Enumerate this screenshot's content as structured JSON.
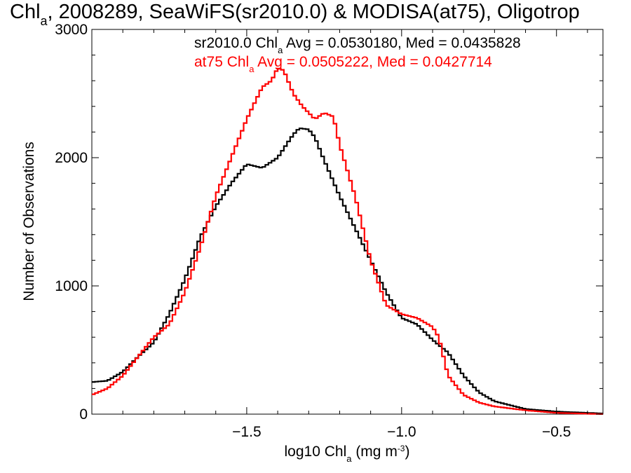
{
  "chart_data": {
    "type": "line",
    "title": {
      "base": "Chl",
      "sub": "a",
      "rest": ", 2008289, SeaWiFS(sr2010.0) & MODISA(at75), Oligotrop"
    },
    "xlabel": {
      "base": "log10 Chl",
      "sub": "a",
      "rest": " (mg m",
      "sup": "-3",
      "close": ")"
    },
    "ylabel": "Number of Observations",
    "xlim": [
      -2.0,
      -0.35
    ],
    "ylim": [
      0,
      3000
    ],
    "xticks": [
      -1.5,
      -1.0,
      -0.5
    ],
    "xtick_labels": [
      "−1.5",
      "−1.0",
      "−0.5"
    ],
    "yticks": [
      0,
      1000,
      2000,
      3000
    ],
    "ytick_labels": [
      "0",
      "1000",
      "2000",
      "3000"
    ],
    "grid": false,
    "legend_position": "top-right",
    "annotations": [
      {
        "color": "#000000",
        "base": "sr2010.0 Chl",
        "sub": "a",
        "rest": " Avg = 0.0530180, Med = 0.0435828"
      },
      {
        "color": "#ff0000",
        "base": "at75 Chl",
        "sub": "a",
        "rest": " Avg = 0.0505222, Med = 0.0427714"
      }
    ],
    "series": [
      {
        "color": "#000000",
        "x": [
          -2.0,
          -1.95,
          -1.9,
          -1.85,
          -1.8,
          -1.75,
          -1.7,
          -1.65,
          -1.6,
          -1.55,
          -1.5,
          -1.45,
          -1.4,
          -1.35,
          -1.33,
          -1.3,
          -1.28,
          -1.25,
          -1.2,
          -1.15,
          -1.1,
          -1.05,
          -1.0,
          -0.95,
          -0.9,
          -0.85,
          -0.8,
          -0.75,
          -0.7,
          -0.65,
          -0.6,
          -0.5,
          -0.35
        ],
        "y": [
          250,
          260,
          330,
          450,
          560,
          780,
          1050,
          1380,
          1620,
          1800,
          1950,
          1920,
          2000,
          2180,
          2230,
          2220,
          2160,
          1980,
          1700,
          1450,
          1200,
          950,
          750,
          700,
          580,
          480,
          300,
          170,
          100,
          70,
          40,
          20,
          5
        ]
      },
      {
        "color": "#ff0000",
        "x": [
          -2.0,
          -1.95,
          -1.9,
          -1.85,
          -1.8,
          -1.75,
          -1.7,
          -1.65,
          -1.6,
          -1.55,
          -1.5,
          -1.45,
          -1.42,
          -1.4,
          -1.38,
          -1.35,
          -1.32,
          -1.3,
          -1.28,
          -1.25,
          -1.22,
          -1.2,
          -1.15,
          -1.1,
          -1.05,
          -1.0,
          -0.95,
          -0.9,
          -0.88,
          -0.85,
          -0.8,
          -0.75,
          -0.7,
          -0.6,
          -0.5,
          -0.35
        ],
        "y": [
          150,
          200,
          300,
          450,
          600,
          700,
          950,
          1300,
          1700,
          2000,
          2300,
          2550,
          2600,
          2700,
          2680,
          2500,
          2400,
          2350,
          2300,
          2350,
          2320,
          2100,
          1700,
          1200,
          850,
          780,
          750,
          680,
          600,
          300,
          150,
          90,
          60,
          30,
          10,
          0
        ]
      }
    ]
  }
}
